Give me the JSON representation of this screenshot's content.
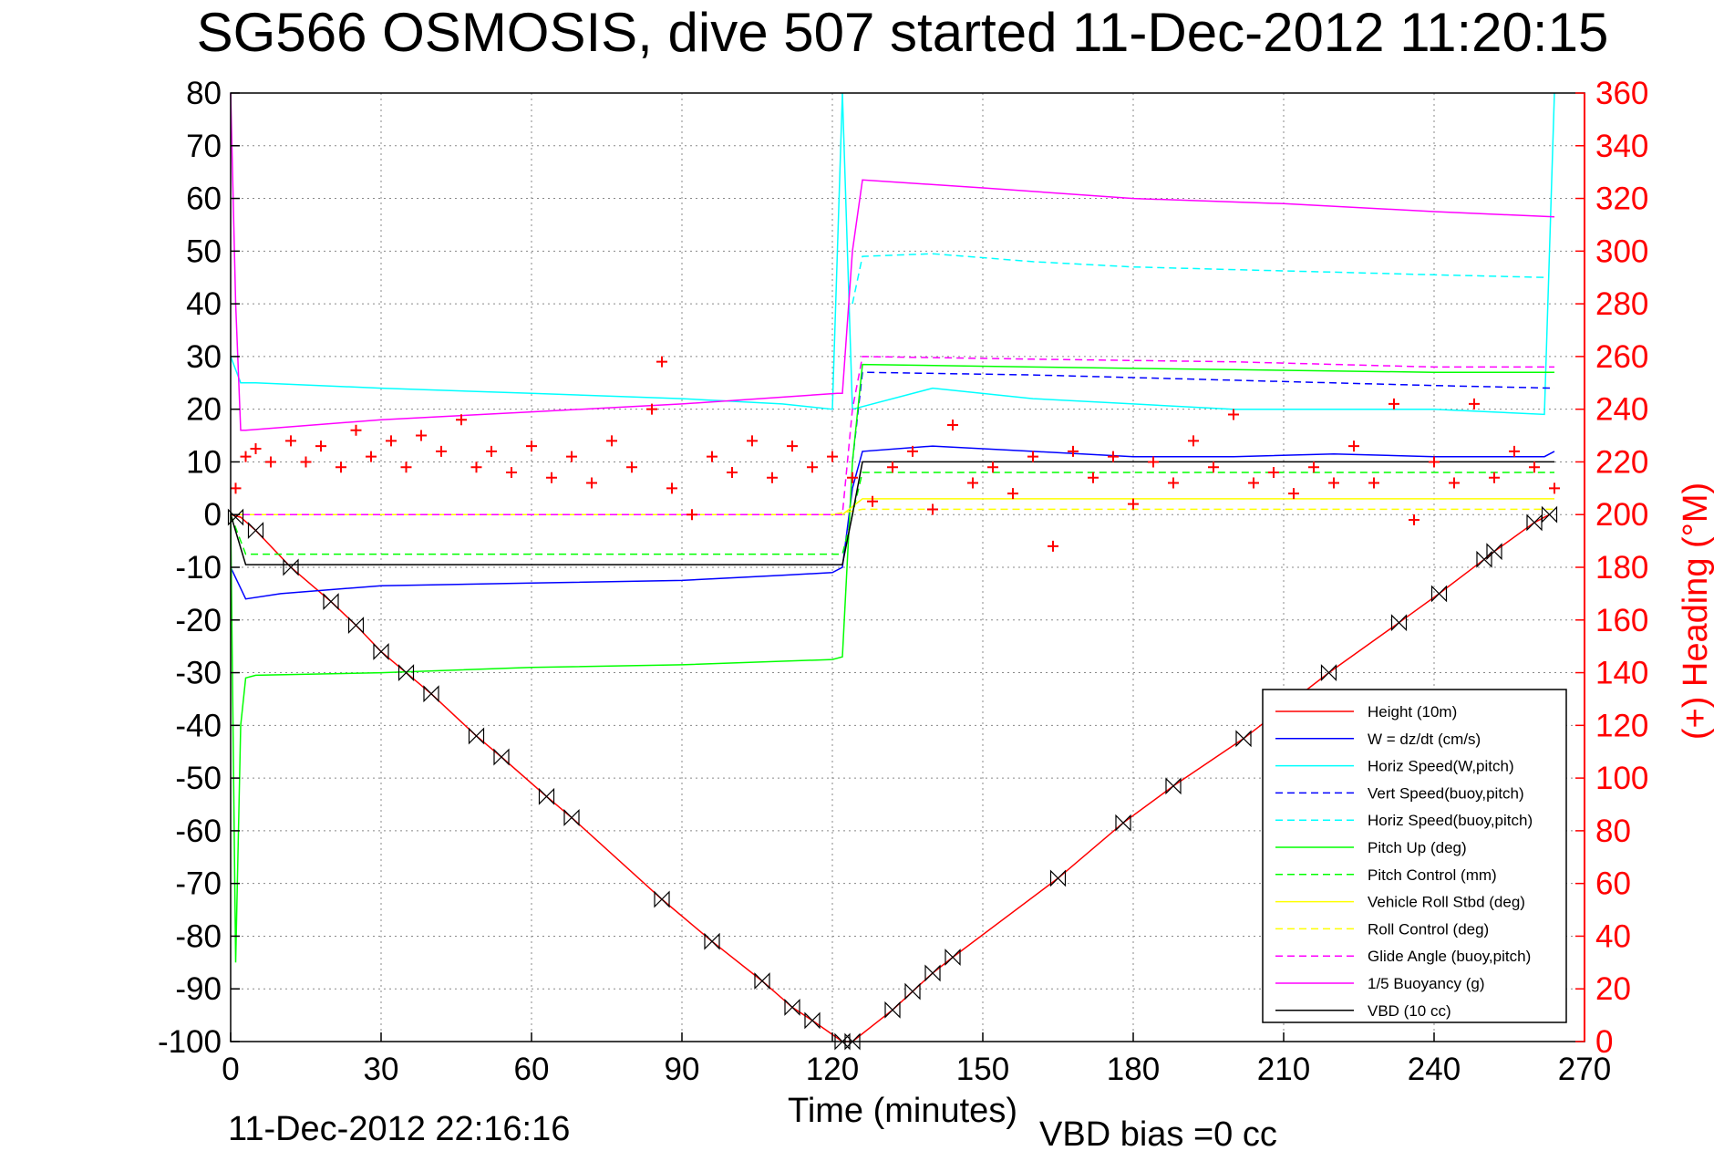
{
  "chart_data": {
    "type": "line",
    "title": "SG566 OSMOSIS, dive 507 started 11-Dec-2012 11:20:15",
    "xlabel": "Time (minutes)",
    "ylabel": "",
    "y2label": "(+) Heading (°M)",
    "footer_left": "11-Dec-2012 22:16:16",
    "footer_right": "VBD bias =0 cc",
    "xlim": [
      0,
      270
    ],
    "ylim": [
      -100,
      80
    ],
    "y2lim": [
      0,
      360
    ],
    "grid": true,
    "legend_position": "bottom-right",
    "xticks": [
      "0",
      "30",
      "60",
      "90",
      "120",
      "150",
      "180",
      "210",
      "240",
      "270"
    ],
    "yticks": [
      "80",
      "70",
      "60",
      "50",
      "40",
      "30",
      "20",
      "10",
      "0",
      "-10",
      "-20",
      "-30",
      "-40",
      "-50",
      "-60",
      "-70",
      "-80",
      "-90",
      "-100"
    ],
    "y2ticks": [
      "360",
      "340",
      "320",
      "300",
      "280",
      "260",
      "240",
      "220",
      "200",
      "180",
      "160",
      "140",
      "120",
      "100",
      "80",
      "60",
      "40",
      "20",
      "0"
    ],
    "colors": {
      "height": "#ff0000",
      "w": "#0000ff",
      "horiz_speed": "#00ffff",
      "vert_speed_buoy": "#0000ff",
      "horiz_speed_buoy": "#00ffff",
      "pitch_up": "#00ff00",
      "pitch_control": "#00ff00",
      "roll": "#ffff00",
      "roll_control": "#ffff00",
      "glide_angle": "#ff00ff",
      "buoyancy": "#ff00ff",
      "vbd": "#000000",
      "heading": "#ff0000"
    },
    "legend": [
      {
        "label": "Height (10m)",
        "color": "#ff0000",
        "dash": false
      },
      {
        "label": "W = dz/dt (cm/s)",
        "color": "#0000ff",
        "dash": false
      },
      {
        "label": "Horiz Speed(W,pitch)",
        "color": "#00ffff",
        "dash": false
      },
      {
        "label": "Vert Speed(buoy,pitch)",
        "color": "#0000ff",
        "dash": true
      },
      {
        "label": "Horiz Speed(buoy,pitch)",
        "color": "#00ffff",
        "dash": true
      },
      {
        "label": "Pitch Up (deg)",
        "color": "#00ff00",
        "dash": false
      },
      {
        "label": "Pitch Control (mm)",
        "color": "#00ff00",
        "dash": true
      },
      {
        "label": "Vehicle Roll Stbd (deg)",
        "color": "#ffff00",
        "dash": false
      },
      {
        "label": "Roll Control (deg)",
        "color": "#ffff00",
        "dash": true
      },
      {
        "label": "Glide Angle (buoy,pitch)",
        "color": "#ff00ff",
        "dash": true
      },
      {
        "label": "1/5 Buoyancy (g)",
        "color": "#ff00ff",
        "dash": false
      },
      {
        "label": "VBD (10 cc)",
        "color": "#000000",
        "dash": false
      }
    ],
    "series": [
      {
        "name": "Height (10m)",
        "axis": "left",
        "dash": false,
        "color": "#ff0000",
        "x": [
          0,
          2,
          5,
          12,
          20,
          25,
          30,
          35,
          40,
          49,
          54,
          63,
          68,
          86,
          96,
          106,
          112,
          116,
          122,
          124,
          132,
          136,
          140,
          144,
          165,
          178,
          188,
          202,
          219,
          233,
          241,
          250,
          252,
          260,
          263
        ],
        "y": [
          0,
          -0.5,
          -3,
          -10,
          -16.5,
          -21,
          -26,
          -30,
          -34,
          -42,
          -46,
          -53.5,
          -57.5,
          -73,
          -81,
          -88.5,
          -93.5,
          -96,
          -100,
          -100,
          -94,
          -90.5,
          -87,
          -84,
          -69,
          -58.5,
          -51.5,
          -42.5,
          -30,
          -20.5,
          -15,
          -8.5,
          -7,
          -1.5,
          0
        ]
      },
      {
        "name": "W = dz/dt (cm/s)",
        "axis": "left",
        "dash": false,
        "color": "#0000ff",
        "x": [
          0,
          2,
          3,
          10,
          30,
          60,
          90,
          110,
          120,
          122,
          124,
          126,
          140,
          160,
          180,
          200,
          220,
          240,
          262,
          264
        ],
        "y": [
          -10,
          -14,
          -16,
          -15,
          -13.5,
          -13,
          -12.5,
          -11.5,
          -11,
          -10,
          5,
          12,
          13,
          12,
          11,
          11,
          11.5,
          11,
          11,
          12
        ]
      },
      {
        "name": "Horiz Speed(W,pitch)",
        "axis": "left",
        "dash": false,
        "color": "#00ffff",
        "x": [
          0,
          2,
          5,
          30,
          60,
          90,
          110,
          120,
          122,
          124,
          140,
          160,
          180,
          200,
          220,
          240,
          262,
          264
        ],
        "y": [
          30,
          25,
          25,
          24,
          23,
          22,
          21,
          20,
          80,
          20,
          24,
          22,
          21,
          20,
          20,
          20,
          19,
          80
        ]
      },
      {
        "name": "Vert Speed(buoy,pitch)",
        "axis": "left",
        "dash": true,
        "color": "#0000ff",
        "x": [
          124,
          126,
          160,
          200,
          240,
          264
        ],
        "y": [
          10,
          27,
          26.5,
          25.5,
          24.5,
          24
        ]
      },
      {
        "name": "Horiz Speed(buoy,pitch)",
        "axis": "left",
        "dash": true,
        "color": "#00ffff",
        "x": [
          124,
          126,
          140,
          160,
          180,
          200,
          220,
          240,
          262
        ],
        "y": [
          40,
          49,
          49.5,
          48,
          47,
          46.5,
          46,
          45.5,
          45
        ]
      },
      {
        "name": "Pitch Up (deg)",
        "axis": "left",
        "dash": false,
        "color": "#00ff00",
        "x": [
          0,
          1,
          2,
          3,
          5,
          30,
          60,
          90,
          120,
          122,
          124,
          126,
          160,
          200,
          240,
          264
        ],
        "y": [
          0,
          -85,
          -40,
          -31,
          -30.5,
          -30,
          -29,
          -28.5,
          -27.5,
          -27,
          10,
          28.5,
          28,
          27.5,
          27,
          27
        ]
      },
      {
        "name": "Pitch Control (mm)",
        "axis": "left",
        "dash": true,
        "color": "#00ff00",
        "x": [
          0,
          3,
          122,
          124,
          126,
          264
        ],
        "y": [
          0,
          -7.5,
          -7.5,
          0,
          8,
          8
        ]
      },
      {
        "name": "Vehicle Roll Stbd (deg)",
        "axis": "left",
        "dash": false,
        "color": "#ffff00",
        "x": [
          0,
          5,
          30,
          60,
          90,
          120,
          122,
          126,
          160,
          200,
          240,
          264
        ],
        "y": [
          0,
          0,
          0,
          0,
          0,
          0,
          0,
          3,
          3,
          3,
          3,
          3
        ]
      },
      {
        "name": "Roll Control (deg)",
        "axis": "left",
        "dash": true,
        "color": "#ffff00",
        "x": [
          0,
          5,
          60,
          120,
          126,
          200,
          264
        ],
        "y": [
          0,
          0,
          0,
          0,
          1,
          1,
          1
        ]
      },
      {
        "name": "Glide Angle (buoy,pitch)",
        "axis": "left",
        "dash": true,
        "color": "#ff00ff",
        "x": [
          0,
          122,
          124,
          126,
          160,
          200,
          240,
          264
        ],
        "y": [
          0,
          0,
          20,
          30,
          29.5,
          29,
          28,
          28
        ]
      },
      {
        "name": "1/5 Buoyancy (g)",
        "axis": "left",
        "dash": false,
        "color": "#ff00ff",
        "x": [
          0,
          1,
          2,
          3,
          30,
          60,
          90,
          121,
          122,
          124,
          126,
          150,
          180,
          210,
          240,
          264
        ],
        "y": [
          80,
          40,
          16,
          16,
          18,
          19.5,
          21,
          23,
          23,
          50,
          63.5,
          62,
          60,
          59,
          57.5,
          56.5
        ]
      },
      {
        "name": "VBD (10 cc)",
        "axis": "left",
        "dash": false,
        "color": "#000000",
        "x": [
          0,
          3,
          122,
          124,
          126,
          264
        ],
        "y": [
          0,
          -9.5,
          -9.5,
          0,
          10,
          10
        ]
      },
      {
        "name": "(+) Heading",
        "axis": "right",
        "dash": false,
        "color": "#ff0000",
        "marker": "+",
        "x": [
          1,
          3,
          5,
          8,
          12,
          15,
          18,
          22,
          25,
          28,
          32,
          35,
          38,
          42,
          46,
          49,
          52,
          56,
          60,
          64,
          68,
          72,
          76,
          80,
          84,
          86,
          88,
          92,
          96,
          100,
          104,
          108,
          112,
          116,
          120,
          124,
          128,
          132,
          136,
          140,
          144,
          148,
          152,
          156,
          160,
          164,
          168,
          172,
          176,
          180,
          184,
          188,
          192,
          196,
          200,
          204,
          208,
          212,
          216,
          220,
          224,
          228,
          232,
          236,
          240,
          244,
          248,
          252,
          256,
          260,
          264
        ],
        "y": [
          210,
          222,
          225,
          220,
          228,
          220,
          226,
          218,
          232,
          222,
          228,
          218,
          230,
          224,
          236,
          218,
          224,
          216,
          226,
          214,
          222,
          212,
          228,
          218,
          240,
          258,
          210,
          200,
          222,
          216,
          228,
          214,
          226,
          218,
          222,
          214,
          205,
          218,
          224,
          202,
          234,
          212,
          218,
          208,
          222,
          188,
          224,
          214,
          222,
          204,
          220,
          212,
          228,
          218,
          238,
          212,
          216,
          208,
          218,
          212,
          226,
          212,
          242,
          198,
          220,
          212,
          242,
          214,
          224,
          218,
          210
        ]
      }
    ],
    "markers": {
      "symbol": "hourglass",
      "x": [
        1,
        5,
        12,
        20,
        25,
        30,
        35,
        40,
        49,
        54,
        63,
        68,
        86,
        96,
        106,
        112,
        116,
        122,
        124,
        132,
        136,
        140,
        144,
        165,
        178,
        188,
        202,
        219,
        233,
        241,
        250,
        252,
        260,
        263
      ],
      "y": [
        -0.5,
        -3,
        -10,
        -16.5,
        -21,
        -26,
        -30,
        -34,
        -42,
        -46,
        -53.5,
        -57.5,
        -73,
        -81,
        -88.5,
        -93.5,
        -96,
        -100,
        -100,
        -94,
        -90.5,
        -87,
        -84,
        -69,
        -58.5,
        -51.5,
        -42.5,
        -30,
        -20.5,
        -15,
        -8.5,
        -7,
        -1.5,
        0
      ]
    }
  }
}
